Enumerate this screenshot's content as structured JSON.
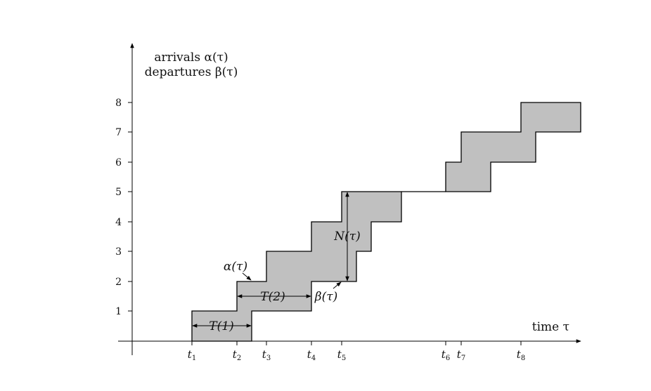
{
  "ylabel": {
    "line1": "arrivals α(τ)",
    "line2": "departures β(τ)"
  },
  "xlabel": "time τ",
  "yticks": [
    "1",
    "2",
    "3",
    "4",
    "5",
    "6",
    "7",
    "8"
  ],
  "xticks": [
    {
      "base": "t",
      "sub": "1"
    },
    {
      "base": "t",
      "sub": "2"
    },
    {
      "base": "t",
      "sub": "3"
    },
    {
      "base": "t",
      "sub": "4"
    },
    {
      "base": "t",
      "sub": "5"
    },
    {
      "base": "t",
      "sub": "6"
    },
    {
      "base": "t",
      "sub": "7"
    },
    {
      "base": "t",
      "sub": "8"
    }
  ],
  "annotations": {
    "alpha": "α(τ)",
    "beta": "β(τ)",
    "N": "N(τ)",
    "T1": "T(1)",
    "T2": "T(2)"
  },
  "colors": {
    "fill": "#c0c0c0",
    "stroke": "#000000"
  }
}
